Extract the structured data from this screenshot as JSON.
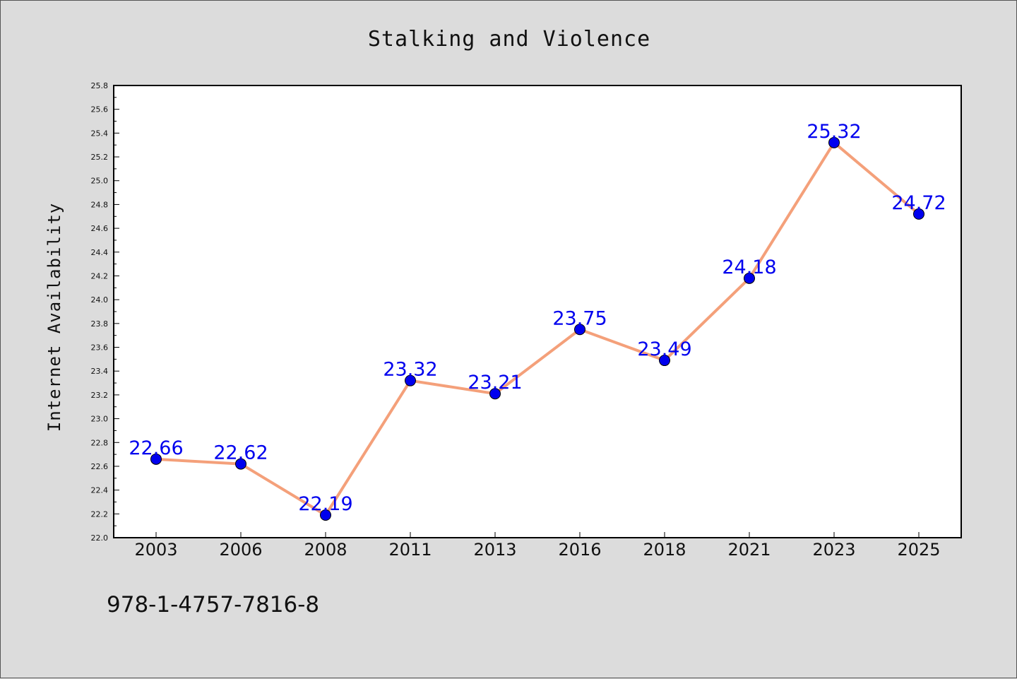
{
  "chart_data": {
    "type": "line",
    "title": "Stalking and Violence",
    "xlabel": "",
    "ylabel": "Internet Availability",
    "categories": [
      "2003",
      "2006",
      "2008",
      "2011",
      "2013",
      "2016",
      "2018",
      "2021",
      "2023",
      "2025"
    ],
    "series": [
      {
        "values": [
          22.66,
          22.62,
          22.19,
          23.32,
          23.21,
          23.75,
          23.49,
          24.18,
          25.32,
          24.72
        ],
        "labels": [
          "22.66",
          "22.62",
          "22.19",
          "23.32",
          "23.21",
          "23.75",
          "23.49",
          "24.18",
          "25.32",
          "24.72"
        ],
        "line_color": "#f4a07a",
        "marker_color": "#0000ee",
        "label_color": "#0000ee"
      }
    ],
    "ylim": [
      22.0,
      25.8
    ],
    "yticks": [
      "22.0",
      "22.2",
      "22.4",
      "22.6",
      "22.8",
      "23.0",
      "23.2",
      "23.4",
      "23.6",
      "23.8",
      "24.0",
      "24.2",
      "24.4",
      "24.6",
      "24.8",
      "25.0",
      "25.2",
      "25.4",
      "25.6",
      "25.8"
    ],
    "grid": false,
    "legend": "none"
  },
  "footer": {
    "isbn": "978-1-4757-7816-8"
  },
  "colors": {
    "background": "#dcdcdc",
    "plot_background": "#ffffff",
    "axis": "#000000"
  }
}
